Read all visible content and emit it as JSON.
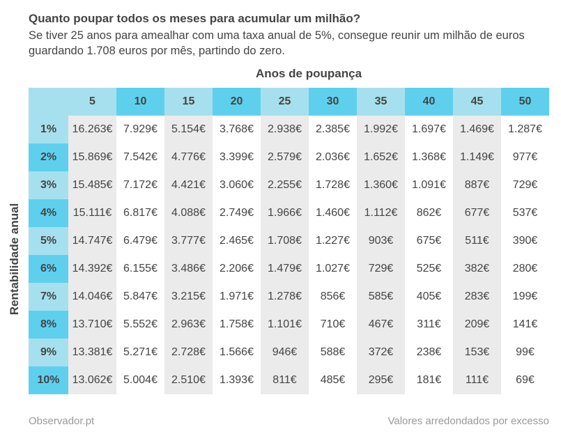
{
  "header": {
    "title": "Quanto poupar todos os meses para acumular um milhão?",
    "subtitle": "Se tiver 25 anos para amealhar com uma taxa anual de 5%, consegue reunir um milhão de euros guardando 1.708 euros por mês, partindo do zero."
  },
  "footer": {
    "source": "Observador.pt",
    "note": "Valores arredondados por excesso"
  },
  "colors": {
    "header_light": "#a6e0ee",
    "header_dark": "#5ed0ee",
    "band_light": "#ebebeb",
    "band_white": "#ffffff",
    "text": "#444444",
    "muted": "#999999"
  },
  "chart_data": {
    "type": "table",
    "title": "Quanto poupar todos os meses para acumular um milhão?",
    "xlabel": "Anos de poupança",
    "ylabel": "Rentabilidade anual",
    "columns": [
      "5",
      "10",
      "15",
      "20",
      "25",
      "30",
      "35",
      "40",
      "45",
      "50"
    ],
    "rows": [
      "1%",
      "2%",
      "3%",
      "4%",
      "5%",
      "6%",
      "7%",
      "8%",
      "9%",
      "10%"
    ],
    "cells": [
      [
        "16.263€",
        "7.929€",
        "5.154€",
        "3.768€",
        "2.938€",
        "2.385€",
        "1.992€",
        "1.697€",
        "1.469€",
        "1.287€"
      ],
      [
        "15.869€",
        "7.542€",
        "4.776€",
        "3.399€",
        "2.579€",
        "2.036€",
        "1.652€",
        "1.368€",
        "1.149€",
        "977€"
      ],
      [
        "15.485€",
        "7.172€",
        "4.421€",
        "3.060€",
        "2.255€",
        "1.728€",
        "1.360€",
        "1.091€",
        "887€",
        "729€"
      ],
      [
        "15.111€",
        "6.817€",
        "4.088€",
        "2.749€",
        "1.966€",
        "1.460€",
        "1.112€",
        "862€",
        "677€",
        "537€"
      ],
      [
        "14.747€",
        "6.479€",
        "3.777€",
        "2.465€",
        "1.708€",
        "1.227€",
        "903€",
        "675€",
        "511€",
        "390€"
      ],
      [
        "14.392€",
        "6.155€",
        "3.486€",
        "2.206€",
        "1.479€",
        "1.027€",
        "729€",
        "525€",
        "382€",
        "280€"
      ],
      [
        "14.046€",
        "5.847€",
        "3.215€",
        "1.971€",
        "1.278€",
        "856€",
        "585€",
        "405€",
        "283€",
        "199€"
      ],
      [
        "13.710€",
        "5.552€",
        "2.963€",
        "1.758€",
        "1.101€",
        "710€",
        "467€",
        "311€",
        "209€",
        "141€"
      ],
      [
        "13.381€",
        "5.271€",
        "2.728€",
        "1.566€",
        "946€",
        "588€",
        "372€",
        "238€",
        "153€",
        "99€"
      ],
      [
        "13.062€",
        "5.004€",
        "2.510€",
        "1.393€",
        "811€",
        "485€",
        "295€",
        "181€",
        "111€",
        "69€"
      ]
    ]
  }
}
